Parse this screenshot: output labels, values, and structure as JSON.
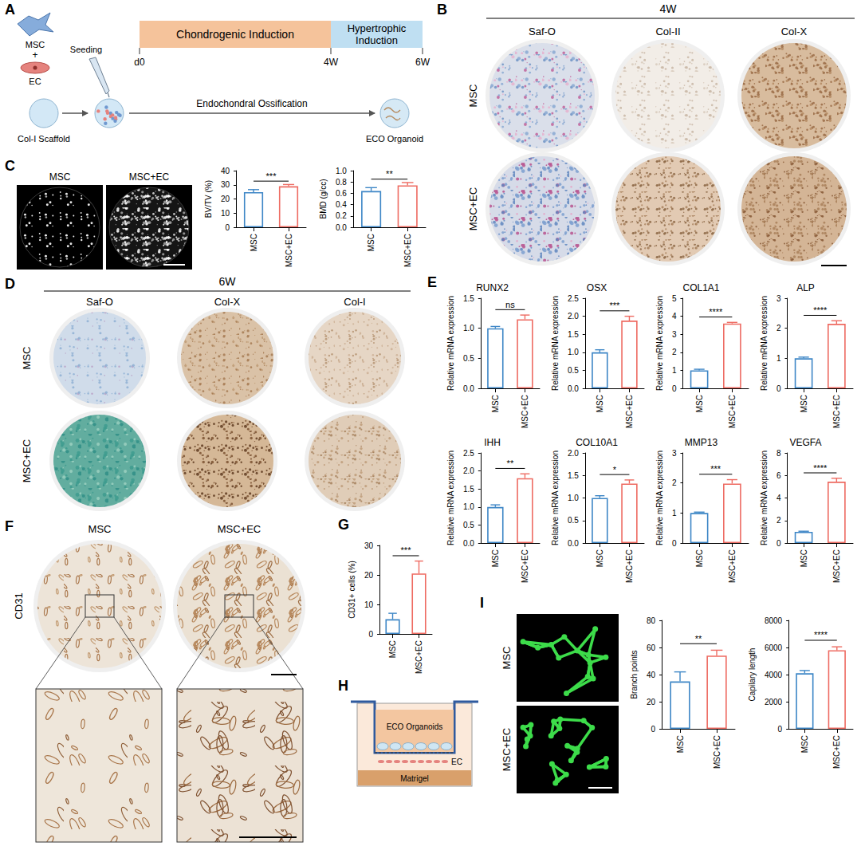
{
  "figure": {
    "panel_letters": [
      "A",
      "B",
      "C",
      "D",
      "E",
      "F",
      "G",
      "H",
      "I"
    ],
    "A": {
      "cells": [
        "MSC",
        "EC"
      ],
      "plus": "+",
      "seeding": "Seeding",
      "stages": [
        "Chondrogenic Induction",
        "Hypertrophic Induction"
      ],
      "timepoints": [
        "d0",
        "4W",
        "6W"
      ],
      "scaffold": "Col-I Scaffold",
      "process": "Endochondral Ossification",
      "product": "ECO Organoid"
    },
    "B": {
      "time": "4W",
      "columns": [
        "Saf-O",
        "Col-II",
        "Col-X"
      ],
      "rows": [
        "MSC",
        "MSC+EC"
      ]
    },
    "C": {
      "images": [
        "MSC",
        "MSC+EC"
      ]
    },
    "D": {
      "time": "6W",
      "columns": [
        "Saf-O",
        "Col-X",
        "Col-I"
      ],
      "rows": [
        "MSC",
        "MSC+EC"
      ]
    },
    "F": {
      "stain": "CD31",
      "columns": [
        "MSC",
        "MSC+EC"
      ]
    },
    "H": {
      "labels": [
        "ECO Organoids",
        "EC",
        "Matrigel"
      ]
    },
    "I": {
      "rows": [
        "MSC",
        "MSC+EC"
      ]
    }
  },
  "chart_data": [
    {
      "type": "bar",
      "ylabel": "BV/TV (%)",
      "categories": [
        "MSC",
        "MSC+EC"
      ],
      "values": [
        24.8,
        29
      ],
      "errors": [
        1.8,
        1.2
      ],
      "colors": [
        "#3d86c6",
        "#ee6b62"
      ],
      "ylim": [
        0,
        40
      ],
      "yticks": [
        0,
        10,
        20,
        30,
        40
      ],
      "annotation": "***",
      "grid": false
    },
    {
      "type": "bar",
      "ylabel": "BMD (g/cc)",
      "categories": [
        "MSC",
        "MSC+EC"
      ],
      "values": [
        0.64,
        0.74
      ],
      "errors": [
        0.06,
        0.05
      ],
      "colors": [
        "#3d86c6",
        "#ee6b62"
      ],
      "ylim": [
        0,
        1
      ],
      "yticks": [
        {
          "value": 0,
          "label": "0.0"
        },
        0.2,
        0.4,
        0.6,
        0.8,
        {
          "value": 1,
          "label": "1.0"
        }
      ],
      "annotation": "**",
      "grid": false
    },
    {
      "type": "bar",
      "title": "RUNX2",
      "ylabel": "Relative mRNA expression",
      "categories": [
        "MSC",
        "MSC+EC"
      ],
      "values": [
        1,
        1.15
      ],
      "errors": [
        0.03,
        0.07
      ],
      "colors": [
        "#3d86c6",
        "#ee6b62"
      ],
      "ylim": [
        0,
        1.5
      ],
      "yticks": [
        {
          "value": 0,
          "label": "0.0"
        },
        0.5,
        {
          "value": 1,
          "label": "1.0"
        },
        1.5
      ],
      "annotation": "ns",
      "grid": false
    },
    {
      "type": "bar",
      "title": "OSX",
      "ylabel": "Relative mRNA expression",
      "categories": [
        "MSC",
        "MSC+EC"
      ],
      "values": [
        1,
        1.88
      ],
      "errors": [
        0.07,
        0.12
      ],
      "colors": [
        "#3d86c6",
        "#ee6b62"
      ],
      "ylim": [
        0,
        2.5
      ],
      "yticks": [
        {
          "value": 0,
          "label": "0.0"
        },
        0.5,
        {
          "value": 1,
          "label": "1.0"
        },
        1.5,
        {
          "value": 2,
          "label": "2.0"
        },
        2.5
      ],
      "annotation": "***",
      "grid": false
    },
    {
      "type": "bar",
      "title": "COL1A1",
      "ylabel": "Relative mRNA expression",
      "categories": [
        "MSC",
        "MSC+EC"
      ],
      "values": [
        1,
        3.6
      ],
      "errors": [
        0.06,
        0.06
      ],
      "colors": [
        "#3d86c6",
        "#ee6b62"
      ],
      "ylim": [
        0,
        5
      ],
      "yticks": [
        0,
        1,
        2,
        3,
        4,
        5
      ],
      "annotation": "****",
      "grid": false
    },
    {
      "type": "bar",
      "title": "ALP",
      "ylabel": "Relative mRNA expression",
      "categories": [
        "MSC",
        "MSC+EC"
      ],
      "values": [
        1,
        2.15
      ],
      "errors": [
        0.04,
        0.1
      ],
      "colors": [
        "#3d86c6",
        "#ee6b62"
      ],
      "ylim": [
        0,
        3
      ],
      "yticks": [
        0,
        1,
        2,
        3
      ],
      "annotation": "****",
      "grid": false
    },
    {
      "type": "bar",
      "title": "IHH",
      "ylabel": "Relative mRNA expression",
      "categories": [
        "MSC",
        "MSC+EC"
      ],
      "values": [
        1,
        1.8
      ],
      "errors": [
        0.06,
        0.12
      ],
      "colors": [
        "#3d86c6",
        "#ee6b62"
      ],
      "ylim": [
        0,
        2.5
      ],
      "yticks": [
        {
          "value": 0,
          "label": "0.0"
        },
        0.5,
        {
          "value": 1,
          "label": "1.0"
        },
        1.5,
        {
          "value": 2,
          "label": "2.0"
        },
        2.5
      ],
      "annotation": "**",
      "grid": false
    },
    {
      "type": "bar",
      "title": "COL10A1",
      "ylabel": "Relative mRNA expression",
      "categories": [
        "MSC",
        "MSC+EC"
      ],
      "values": [
        1,
        1.32
      ],
      "errors": [
        0.05,
        0.08
      ],
      "colors": [
        "#3d86c6",
        "#ee6b62"
      ],
      "ylim": [
        0,
        2
      ],
      "yticks": [
        {
          "value": 0,
          "label": "0.0"
        },
        0.5,
        {
          "value": 1,
          "label": "1.0"
        },
        1.5,
        {
          "value": 2,
          "label": "2.0"
        }
      ],
      "annotation": "*",
      "grid": false
    },
    {
      "type": "bar",
      "title": "MMP13",
      "ylabel": "Relative mRNA expression",
      "categories": [
        "MSC",
        "MSC+EC"
      ],
      "values": [
        1,
        1.98
      ],
      "errors": [
        0.03,
        0.13
      ],
      "colors": [
        "#3d86c6",
        "#ee6b62"
      ],
      "ylim": [
        0,
        3
      ],
      "yticks": [
        0,
        1,
        2,
        3
      ],
      "annotation": "***",
      "grid": false
    },
    {
      "type": "bar",
      "title": "VEGFA",
      "ylabel": "Relative mRNA expression",
      "categories": [
        "MSC",
        "MSC+EC"
      ],
      "values": [
        1,
        5.45
      ],
      "errors": [
        0.05,
        0.3
      ],
      "colors": [
        "#3d86c6",
        "#ee6b62"
      ],
      "ylim": [
        0,
        8
      ],
      "yticks": [
        0,
        2,
        4,
        6,
        8
      ],
      "annotation": "****",
      "grid": false
    },
    {
      "type": "bar",
      "ylabel": "CD31+ cells (%)",
      "categories": [
        "MSC",
        "MSC+EC"
      ],
      "values": [
        5,
        20.5
      ],
      "errors": [
        2,
        4.2
      ],
      "colors": [
        "#3d86c6",
        "#ee6b62"
      ],
      "ylim": [
        0,
        30
      ],
      "yticks": [
        0,
        10,
        20,
        30
      ],
      "annotation": "***",
      "grid": false
    },
    {
      "type": "bar",
      "ylabel": "Branch points",
      "categories": [
        "MSC",
        "MSC+EC"
      ],
      "values": [
        35,
        54
      ],
      "errors": [
        7,
        4
      ],
      "colors": [
        "#3d86c6",
        "#ee6b62"
      ],
      "ylim": [
        0,
        80
      ],
      "yticks": [
        0,
        20,
        40,
        60,
        80
      ],
      "annotation": "**",
      "grid": false
    },
    {
      "type": "bar",
      "ylabel": "Capilary length",
      "categories": [
        "MSC",
        "MSC+EC"
      ],
      "values": [
        4100,
        5800
      ],
      "errors": [
        200,
        250
      ],
      "colors": [
        "#3d86c6",
        "#ee6b62"
      ],
      "ylim": [
        0,
        8000
      ],
      "yticks": [
        0,
        2000,
        4000,
        6000,
        8000
      ],
      "annotation": "****",
      "grid": false
    }
  ]
}
